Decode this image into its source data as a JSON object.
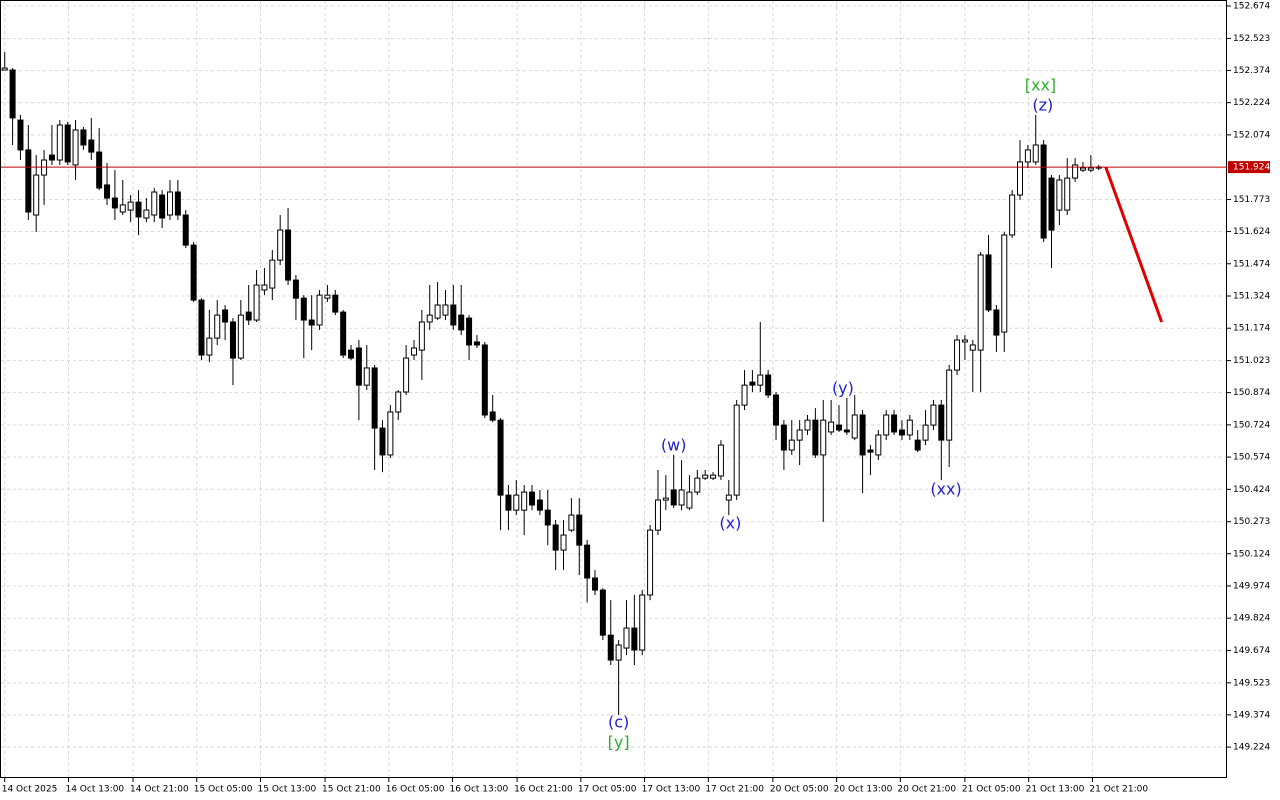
{
  "chart_data": {
    "type": "candlestick",
    "open": [
      152.376,
      152.376,
      152.143,
      152.004,
      151.701,
      151.887,
      151.98,
      151.957,
      152.12,
      151.934,
      152.097,
      152.05,
      151.994,
      151.841,
      151.78,
      151.715,
      151.724,
      151.761,
      151.687,
      151.701,
      151.794,
      151.701,
      151.808,
      151.701,
      151.561,
      151.305,
      151.049,
      151.128,
      151.259,
      151.203,
      151.035,
      151.249,
      151.212,
      151.352,
      151.361,
      151.491,
      151.631,
      151.398,
      151.314,
      151.212,
      151.189,
      151.314,
      151.328,
      151.249,
      151.072,
      151.082,
      150.909,
      150.989,
      150.709,
      150.584,
      150.784,
      150.877,
      151.049,
      151.072,
      151.203,
      151.221,
      151.235,
      151.282,
      151.235,
      151.221,
      151.11,
      151.096,
      150.784,
      150.746,
      150.397,
      150.327,
      150.327,
      150.411,
      150.374,
      150.327,
      150.258,
      150.141,
      150.234,
      150.304,
      150.164,
      150.011,
      149.955,
      149.745,
      149.629,
      149.685,
      149.778,
      149.676,
      149.932,
      150.234,
      150.374,
      150.421,
      150.351,
      150.337,
      150.411,
      150.476,
      150.476,
      150.486,
      150.374,
      150.397,
      150.816,
      150.923,
      150.909,
      150.956,
      150.863,
      150.723,
      150.607,
      150.653,
      150.7,
      150.746,
      150.584,
      150.691,
      150.723,
      150.7,
      150.663,
      150.77,
      150.607,
      150.584,
      150.677,
      150.77,
      150.7,
      150.677,
      150.653,
      150.653,
      150.723,
      150.816,
      150.653,
      150.979,
      151.11,
      151.072,
      151.072,
      151.515,
      151.259,
      151.156,
      151.608,
      151.794,
      151.948,
      151.948,
      152.027,
      151.873,
      151.724,
      151.724,
      151.873,
      151.91,
      151.91,
      151.92
    ],
    "high": [
      152.46,
      152.385,
      152.167,
      152.12,
      151.98,
      152.004,
      152.12,
      152.143,
      152.134,
      152.143,
      152.111,
      152.153,
      152.106,
      151.943,
      151.91,
      151.864,
      151.794,
      151.817,
      151.78,
      151.827,
      151.817,
      151.864,
      151.864,
      151.724,
      151.575,
      151.314,
      151.259,
      151.305,
      151.282,
      151.221,
      151.305,
      151.375,
      151.445,
      151.454,
      151.538,
      151.701,
      151.734,
      151.422,
      151.328,
      151.328,
      151.352,
      151.375,
      151.352,
      151.259,
      151.096,
      151.119,
      151.096,
      151.003,
      150.746,
      150.816,
      150.886,
      151.096,
      151.119,
      151.259,
      151.375,
      151.389,
      151.352,
      151.375,
      151.375,
      151.235,
      151.142,
      151.11,
      150.863,
      150.756,
      150.444,
      150.467,
      150.444,
      150.444,
      150.421,
      150.421,
      150.281,
      150.281,
      150.383,
      150.383,
      150.188,
      150.048,
      149.964,
      149.908,
      149.722,
      149.908,
      149.932,
      149.955,
      150.258,
      150.514,
      150.49,
      150.584,
      150.56,
      150.49,
      150.514,
      150.514,
      150.504,
      150.653,
      150.467,
      150.84,
      150.979,
      150.979,
      151.203,
      150.979,
      150.877,
      150.746,
      150.746,
      150.746,
      150.77,
      150.802,
      150.84,
      150.84,
      150.816,
      150.849,
      150.863,
      150.793,
      150.63,
      150.7,
      150.793,
      150.793,
      150.746,
      150.77,
      150.7,
      150.793,
      150.84,
      150.84,
      151.003,
      151.142,
      151.142,
      151.119,
      151.529,
      151.608,
      151.282,
      151.622,
      151.817,
      152.05,
      152.027,
      152.167,
      152.05,
      151.887,
      151.887,
      151.966,
      151.966,
      151.948,
      151.98,
      151.934
    ],
    "low": [
      152.376,
      152.027,
      151.957,
      151.678,
      151.622,
      151.748,
      151.934,
      151.934,
      151.934,
      151.864,
      152.004,
      151.957,
      151.817,
      151.748,
      151.678,
      151.701,
      151.668,
      151.608,
      151.668,
      151.668,
      151.64,
      151.678,
      151.678,
      151.547,
      151.296,
      151.026,
      151.016,
      151.096,
      151.119,
      150.909,
      151.026,
      151.189,
      151.203,
      151.328,
      151.305,
      151.468,
      151.375,
      151.212,
      151.035,
      151.072,
      151.166,
      151.296,
      151.235,
      151.035,
      151.026,
      150.746,
      150.886,
      150.514,
      150.504,
      150.57,
      150.746,
      150.863,
      151.026,
      150.933,
      151.166,
      151.212,
      151.212,
      151.166,
      151.142,
      151.026,
      151.082,
      150.756,
      150.737,
      150.234,
      150.234,
      150.304,
      150.211,
      150.327,
      150.304,
      150.164,
      150.048,
      150.048,
      150.225,
      150.025,
      149.897,
      149.932,
      149.722,
      149.606,
      149.373,
      149.652,
      149.606,
      149.652,
      149.908,
      150.211,
      150.327,
      150.337,
      150.327,
      150.327,
      150.397,
      150.467,
      150.467,
      150.467,
      150.304,
      150.374,
      150.793,
      150.877,
      150.877,
      150.849,
      150.653,
      150.514,
      150.584,
      150.537,
      150.677,
      150.57,
      150.272,
      150.677,
      150.691,
      150.677,
      150.653,
      150.407,
      150.49,
      150.56,
      150.653,
      150.677,
      150.653,
      150.653,
      150.597,
      150.63,
      150.7,
      150.467,
      150.528,
      150.956,
      151.026,
      150.877,
      150.877,
      151.249,
      151.063,
      151.063,
      151.594,
      151.771,
      151.92,
      151.934,
      151.575,
      151.454,
      151.654,
      151.701,
      151.855,
      151.901,
      151.901,
      151.91
    ],
    "close": [
      152.385,
      152.153,
      152.004,
      151.715,
      151.887,
      151.957,
      151.957,
      152.12,
      151.948,
      152.097,
      152.027,
      151.994,
      151.827,
      151.78,
      151.734,
      151.748,
      151.761,
      151.692,
      151.724,
      151.808,
      151.687,
      151.808,
      151.701,
      151.561,
      151.305,
      151.049,
      151.128,
      151.235,
      151.203,
      151.035,
      151.235,
      151.212,
      151.375,
      151.375,
      151.491,
      151.631,
      151.398,
      151.314,
      151.212,
      151.189,
      151.328,
      151.328,
      151.249,
      151.049,
      151.035,
      150.909,
      150.989,
      150.709,
      150.584,
      150.784,
      150.877,
      151.035,
      151.082,
      151.203,
      151.235,
      151.282,
      151.282,
      151.189,
      151.166,
      151.096,
      151.096,
      150.77,
      150.746,
      150.397,
      150.327,
      150.397,
      150.411,
      150.351,
      150.327,
      150.258,
      150.141,
      150.211,
      150.304,
      150.164,
      150.011,
      149.955,
      149.745,
      149.629,
      149.699,
      149.778,
      149.676,
      149.932,
      150.234,
      150.374,
      150.383,
      150.351,
      150.421,
      150.411,
      150.476,
      150.49,
      150.49,
      150.63,
      150.397,
      150.816,
      150.909,
      150.909,
      150.956,
      150.863,
      150.723,
      150.607,
      150.653,
      150.7,
      150.746,
      150.584,
      150.746,
      150.737,
      150.7,
      150.691,
      150.77,
      150.584,
      150.597,
      150.677,
      150.77,
      150.691,
      150.677,
      150.746,
      150.607,
      150.723,
      150.816,
      150.653,
      150.979,
      151.119,
      151.119,
      151.096,
      151.515,
      151.259,
      151.142,
      151.608,
      151.794,
      151.948,
      152.004,
      152.027,
      151.594,
      151.631,
      151.864,
      151.873,
      151.934,
      151.92,
      151.92,
      151.924
    ],
    "xlim": [
      -0.6,
      155.3
    ],
    "ylim": [
      149.08,
      152.702
    ],
    "yticks": [
      152.674,
      152.523,
      152.374,
      152.224,
      152.074,
      151.773,
      151.624,
      151.474,
      151.324,
      151.174,
      151.023,
      150.874,
      150.724,
      150.574,
      150.424,
      150.273,
      150.124,
      149.974,
      149.824,
      149.674,
      149.523,
      149.374,
      149.224
    ],
    "xticks": [
      {
        "value": 0,
        "label": "14 Oct 2025"
      },
      {
        "value": 8.1,
        "label": "14 Oct 13:00"
      },
      {
        "value": 16.3,
        "label": "14 Oct 21:00"
      },
      {
        "value": 24.4,
        "label": "15 Oct 05:00"
      },
      {
        "value": 32.5,
        "label": "15 Oct 13:00"
      },
      {
        "value": 40.7,
        "label": "15 Oct 21:00"
      },
      {
        "value": 48.8,
        "label": "16 Oct 05:00"
      },
      {
        "value": 56.9,
        "label": "16 Oct 13:00"
      },
      {
        "value": 65.1,
        "label": "16 Oct 21:00"
      },
      {
        "value": 73.2,
        "label": "17 Oct 05:00"
      },
      {
        "value": 81.3,
        "label": "17 Oct 13:00"
      },
      {
        "value": 89.4,
        "label": "17 Oct 21:00"
      },
      {
        "value": 97.6,
        "label": "20 Oct 05:00"
      },
      {
        "value": 105.7,
        "label": "20 Oct 13:00"
      },
      {
        "value": 113.8,
        "label": "20 Oct 21:00"
      },
      {
        "value": 122,
        "label": "21 Oct 05:00"
      },
      {
        "value": 130.1,
        "label": "21 Oct 13:00"
      },
      {
        "value": 138.2,
        "label": "21 Oct 21:00"
      }
    ],
    "grid": true,
    "current_price": {
      "value": 151.924,
      "color": "#c00000"
    },
    "forecast": {
      "color": "#e00000",
      "x": [
        139.9,
        147.0
      ],
      "y": [
        151.924,
        151.203
      ]
    },
    "annotations": [
      {
        "text": "(c)",
        "color": "#2020d0",
        "x": 78.0,
        "y": 149.336
      },
      {
        "text": "[y]",
        "color": "#30b030",
        "x": 78.0,
        "y": 149.243
      },
      {
        "text": "(w)",
        "color": "#2020d0",
        "x": 85.0,
        "y": 150.625
      },
      {
        "text": "(x)",
        "color": "#2020d0",
        "x": 92.2,
        "y": 150.262
      },
      {
        "text": "(y)",
        "color": "#2020d0",
        "x": 106.5,
        "y": 150.891
      },
      {
        "text": "(xx)",
        "color": "#2020d0",
        "x": 119.6,
        "y": 150.421
      },
      {
        "text": "(z)",
        "color": "#2020d0",
        "x": 131.9,
        "y": 152.208
      },
      {
        "text": "[xx]",
        "color": "#30b030",
        "x": 131.6,
        "y": 152.302
      }
    ]
  }
}
